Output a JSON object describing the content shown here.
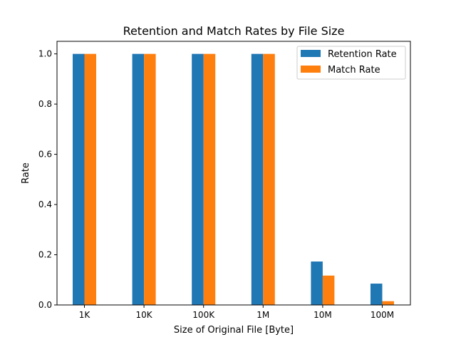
{
  "chart_data": {
    "type": "bar",
    "title": "Retention and Match Rates by File Size",
    "xlabel": "Size of Original File [Byte]",
    "ylabel": "Rate",
    "categories": [
      "1K",
      "10K",
      "100K",
      "1M",
      "10M",
      "100M"
    ],
    "series": [
      {
        "name": "Retention Rate",
        "values": [
          1.0,
          1.0,
          1.0,
          1.0,
          0.173,
          0.085
        ],
        "color": "#1f77b4"
      },
      {
        "name": "Match Rate",
        "values": [
          1.0,
          1.0,
          1.0,
          1.0,
          0.117,
          0.015
        ],
        "color": "#ff7f0e"
      }
    ],
    "ylim": [
      0,
      1.05
    ],
    "yticks": [
      0.0,
      0.2,
      0.4,
      0.6,
      0.8,
      1.0
    ],
    "ytick_labels": [
      "0.0",
      "0.2",
      "0.4",
      "0.6",
      "0.8",
      "1.0"
    ],
    "grid": false,
    "legend": "top-right"
  }
}
